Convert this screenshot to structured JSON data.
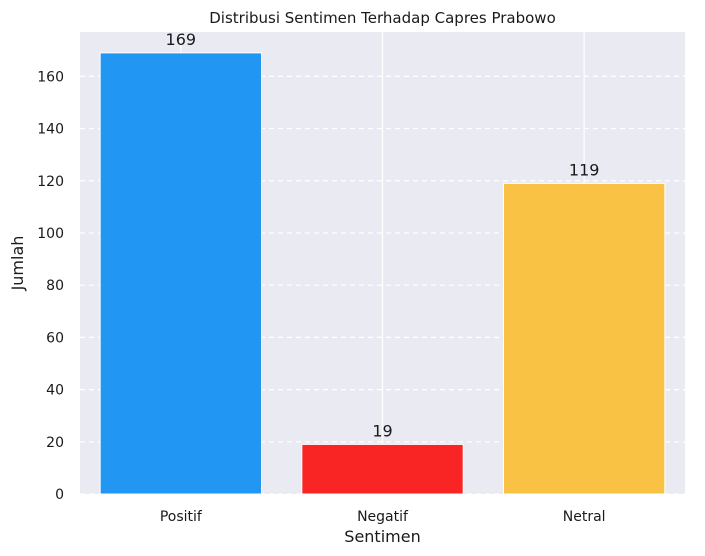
{
  "chart_data": {
    "type": "bar",
    "title": "Distribusi Sentimen Terhadap Capres Prabowo",
    "xlabel": "Sentimen",
    "ylabel": "Jumlah",
    "categories": [
      "Positif",
      "Negatif",
      "Netral"
    ],
    "values": [
      169,
      19,
      119
    ],
    "colors": [
      "#2196f3",
      "#f92424",
      "#f9c244"
    ],
    "ylim": [
      0,
      177
    ],
    "yticks": [
      0,
      20,
      40,
      60,
      80,
      100,
      120,
      140,
      160
    ],
    "background": "#eaeaf2",
    "grid": {
      "x": "solid-white",
      "y": "dashed-white"
    },
    "data_labels": [
      "169",
      "19",
      "119"
    ]
  }
}
